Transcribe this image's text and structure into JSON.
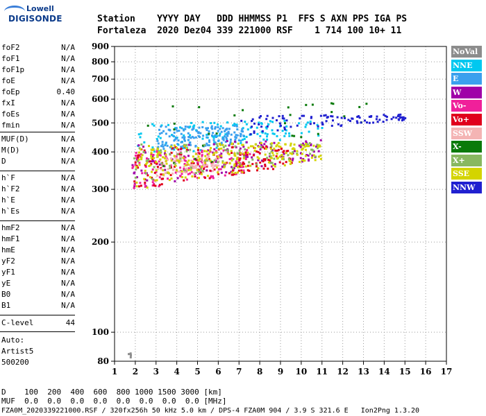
{
  "logo": {
    "brand_top": "Lowell",
    "brand_bottom": "DIGISONDE"
  },
  "header": {
    "line1": "Station    YYYY DAY   DDD HHMMSS P1  FFS S AXN PPS IGA PS",
    "line2": "Fortaleza  2020 Dez04 339 221000 RSF    1 714 100 10+ 11"
  },
  "params_group1": [
    {
      "name": "foF2",
      "value": "N/A"
    },
    {
      "name": "foF1",
      "value": "N/A"
    },
    {
      "name": "foF1p",
      "value": "N/A"
    },
    {
      "name": "foE",
      "value": "N/A"
    },
    {
      "name": "foEp",
      "value": "0.40"
    },
    {
      "name": "fxI",
      "value": "N/A"
    },
    {
      "name": "foEs",
      "value": "N/A"
    },
    {
      "name": "fmin",
      "value": "N/A"
    }
  ],
  "params_group2": [
    {
      "name": "MUF(D)",
      "value": "N/A"
    },
    {
      "name": "M(D)",
      "value": "N/A"
    },
    {
      "name": "D",
      "value": "N/A"
    }
  ],
  "params_group3": [
    {
      "name": "h`F",
      "value": "N/A"
    },
    {
      "name": "h`F2",
      "value": "N/A"
    },
    {
      "name": "h`E",
      "value": "N/A"
    },
    {
      "name": "h`Es",
      "value": "N/A"
    }
  ],
  "params_group4": [
    {
      "name": "hmF2",
      "value": "N/A"
    },
    {
      "name": "hmF1",
      "value": "N/A"
    },
    {
      "name": "hmE",
      "value": "N/A"
    },
    {
      "name": "yF2",
      "value": "N/A"
    },
    {
      "name": "yF1",
      "value": "N/A"
    },
    {
      "name": "yE",
      "value": "N/A"
    },
    {
      "name": "B0",
      "value": "N/A"
    },
    {
      "name": "B1",
      "value": "N/A"
    }
  ],
  "c_level": {
    "name": "C-level",
    "value": "44"
  },
  "auto": {
    "label": "Auto:",
    "system": "Artist5",
    "version": "500200"
  },
  "legend": [
    {
      "label": "NoVal",
      "color": "#8c8c8c"
    },
    {
      "label": "NNE",
      "color": "#00c8f0"
    },
    {
      "label": "E",
      "color": "#3aa0ee"
    },
    {
      "label": "W",
      "color": "#a000a8"
    },
    {
      "label": "Vo-",
      "color": "#f0209a"
    },
    {
      "label": "Vo+",
      "color": "#e0001c"
    },
    {
      "label": "SSW",
      "color": "#f4b4b4"
    },
    {
      "label": "X-",
      "color": "#0a7a0a"
    },
    {
      "label": "X+",
      "color": "#88b860"
    },
    {
      "label": "SSE",
      "color": "#d4d400"
    },
    {
      "label": "NNW",
      "color": "#2020d0"
    }
  ],
  "footer": {
    "row_d": "D    100  200  400  600  800 1000 1500 3000 [km]",
    "row_muf": "MUF  0.0  0.0  0.0  0.0  0.0  0.0  0.0  0.0 [MHz]",
    "file": "FZA0M_2020339221000.RSF / 320fx256h 50 kHz 5.0 km / DPS-4 FZA0M 904 / 3.9 S 321.6 E   Ion2Png 1.3.20"
  },
  "chart_data": {
    "type": "scatter",
    "xlim": [
      1,
      17
    ],
    "ylim": [
      80,
      900
    ],
    "x_ticks": [
      "1",
      "2",
      "3",
      "4",
      "5",
      "6",
      "7",
      "8",
      "9",
      "10",
      "11",
      "12",
      "13",
      "14",
      "15",
      "16",
      "17"
    ],
    "y_ticks": [
      "80",
      "100",
      "200",
      "300",
      "400",
      "500",
      "600",
      "700",
      "800",
      "900"
    ],
    "y_scale": "log",
    "grid": "dotted",
    "legend_position": "right",
    "series": [
      {
        "name": "NoVal",
        "x_range": [
          1.6,
          1.8
        ],
        "y_range": [
          82,
          86
        ]
      },
      {
        "name": "NNE",
        "x_range": [
          2.0,
          11.0
        ],
        "y_range": [
          380,
          520
        ]
      },
      {
        "name": "E",
        "x_range": [
          3.0,
          7.2
        ],
        "y_range": [
          400,
          500
        ]
      },
      {
        "name": "W",
        "x_range": [
          1.8,
          11.0
        ],
        "y_range": [
          300,
          450
        ]
      },
      {
        "name": "Vo-",
        "x_range": [
          1.8,
          7.5
        ],
        "y_range": [
          300,
          420
        ]
      },
      {
        "name": "Vo+",
        "x_range": [
          1.8,
          9.5
        ],
        "y_range": [
          300,
          430
        ]
      },
      {
        "name": "SSW",
        "x_range": [
          3.0,
          6.0
        ],
        "y_range": [
          330,
          400
        ]
      },
      {
        "name": "X-",
        "x_range": [
          1.8,
          13.5
        ],
        "y_range": [
          300,
          600
        ]
      },
      {
        "name": "X+",
        "x_range": [
          1.8,
          11.0
        ],
        "y_range": [
          320,
          440
        ]
      },
      {
        "name": "SSE",
        "x_range": [
          2.0,
          11.0
        ],
        "y_range": [
          300,
          440
        ]
      },
      {
        "name": "NNW",
        "x_range": [
          7.0,
          15.0
        ],
        "y_range": [
          420,
          540
        ]
      }
    ]
  }
}
